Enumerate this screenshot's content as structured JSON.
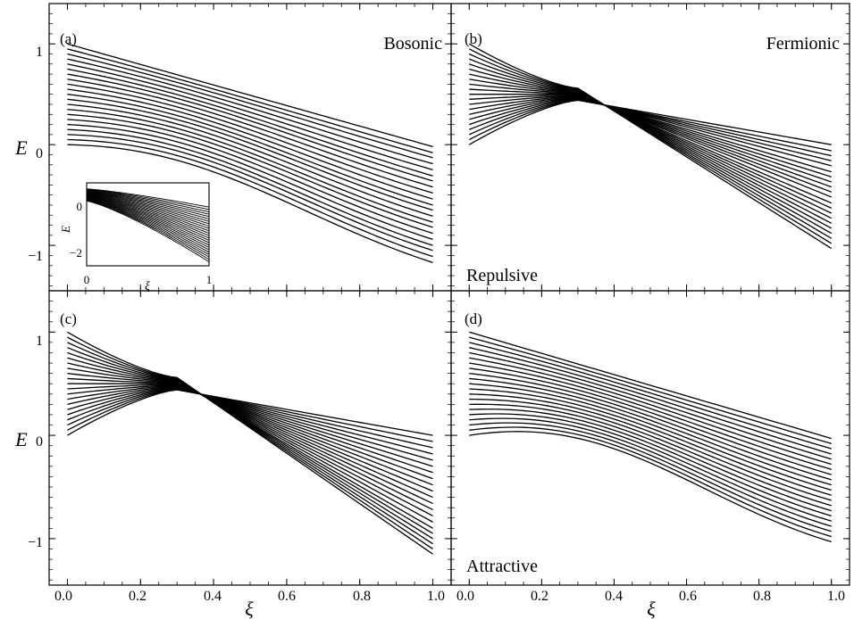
{
  "chart_data": [
    {
      "id": "a",
      "type": "line",
      "panel_label": "(a)",
      "annotation": "Bosonic",
      "xlabel": "",
      "ylabel": "E",
      "xlim": [
        -0.05,
        1.05
      ],
      "ylim": [
        -1.45,
        1.4
      ],
      "xticks": [],
      "yticks": [
        "1",
        "0",
        "−1"
      ],
      "grid": false,
      "series_count": 21,
      "series_rule": "E(ξ) for levels k = 0..20; start value at ξ=0 is k/20, end value at ξ=1 spans from -0.02 (top) to -1.17 (bottom)",
      "start_values": [
        1.0,
        0.95,
        0.9,
        0.85,
        0.8,
        0.75,
        0.7,
        0.65,
        0.6,
        0.55,
        0.5,
        0.45,
        0.4,
        0.35,
        0.3,
        0.25,
        0.2,
        0.15,
        0.1,
        0.05,
        0.0
      ],
      "end_values": [
        -0.02,
        -0.08,
        -0.13,
        -0.19,
        -0.25,
        -0.31,
        -0.36,
        -0.42,
        -0.48,
        -0.54,
        -0.6,
        -0.65,
        -0.71,
        -0.77,
        -0.82,
        -0.88,
        -0.94,
        -1.0,
        -1.05,
        -1.11,
        -1.17
      ],
      "inset": {
        "ylabel": "E",
        "xlabel": "ξ",
        "xlim": [
          0,
          1
        ],
        "ylim": [
          -3.2,
          0.9
        ],
        "xticks": [
          "0",
          "1"
        ],
        "yticks": [
          "0",
          "−2"
        ],
        "start_values_range": [
          0.0,
          0.6
        ],
        "end_values_range": [
          -0.3,
          -3.0
        ]
      }
    },
    {
      "id": "b",
      "type": "line",
      "panel_label": "(b)",
      "annotation": "Fermionic",
      "annotation_bottom": "Repulsive",
      "xlabel": "",
      "ylabel": "",
      "xlim": [
        -0.05,
        1.05
      ],
      "ylim": [
        -1.45,
        1.4
      ],
      "grid": false,
      "series_count": 21,
      "series_rule": "lines start evenly at 1.0..0.0 (top to bottom) and end reversed, fanning through a crossing near ξ≈0.3",
      "start_values": [
        1.0,
        0.95,
        0.9,
        0.85,
        0.8,
        0.75,
        0.7,
        0.65,
        0.6,
        0.55,
        0.5,
        0.45,
        0.4,
        0.35,
        0.3,
        0.25,
        0.2,
        0.15,
        0.1,
        0.05,
        0.0
      ],
      "end_values": [
        -1.03,
        -0.98,
        -0.93,
        -0.88,
        -0.83,
        -0.78,
        -0.73,
        -0.68,
        -0.63,
        -0.58,
        -0.52,
        -0.47,
        -0.42,
        -0.37,
        -0.32,
        -0.27,
        -0.21,
        -0.16,
        -0.11,
        -0.06,
        0.0
      ]
    },
    {
      "id": "c",
      "type": "line",
      "panel_label": "(c)",
      "xlabel": "ξ",
      "ylabel": "E",
      "xlim": [
        -0.05,
        1.05
      ],
      "ylim": [
        -1.45,
        1.4
      ],
      "xticks": [
        "0.0",
        "0.2",
        "0.4",
        "0.6",
        "0.8",
        "1.0"
      ],
      "yticks": [
        "1",
        "0",
        "−1"
      ],
      "grid": false,
      "series_count": 21,
      "start_values": [
        1.0,
        0.95,
        0.9,
        0.85,
        0.8,
        0.75,
        0.7,
        0.65,
        0.6,
        0.55,
        0.5,
        0.45,
        0.4,
        0.35,
        0.3,
        0.25,
        0.2,
        0.15,
        0.1,
        0.05,
        0.0
      ],
      "end_values": [
        -1.15,
        -1.1,
        -1.05,
        -1.0,
        -0.95,
        -0.9,
        -0.84,
        -0.78,
        -0.72,
        -0.66,
        -0.6,
        -0.54,
        -0.48,
        -0.42,
        -0.36,
        -0.3,
        -0.24,
        -0.18,
        -0.12,
        -0.06,
        0.0
      ]
    },
    {
      "id": "d",
      "type": "line",
      "panel_label": "(d)",
      "annotation_bottom": "Attractive",
      "xlabel": "ξ",
      "ylabel": "",
      "xlim": [
        -0.05,
        1.05
      ],
      "ylim": [
        -1.45,
        1.4
      ],
      "xticks": [
        "0.0",
        "0.2",
        "0.4",
        "0.6",
        "0.8",
        "1.0"
      ],
      "grid": false,
      "series_count": 21,
      "start_values": [
        1.0,
        0.95,
        0.9,
        0.85,
        0.8,
        0.75,
        0.7,
        0.65,
        0.6,
        0.55,
        0.5,
        0.45,
        0.4,
        0.35,
        0.3,
        0.25,
        0.2,
        0.15,
        0.1,
        0.05,
        0.0
      ],
      "end_values": [
        -0.03,
        -0.08,
        -0.13,
        -0.18,
        -0.23,
        -0.28,
        -0.33,
        -0.38,
        -0.43,
        -0.48,
        -0.53,
        -0.58,
        -0.63,
        -0.68,
        -0.73,
        -0.78,
        -0.83,
        -0.88,
        -0.93,
        -0.98,
        -1.03
      ]
    }
  ]
}
